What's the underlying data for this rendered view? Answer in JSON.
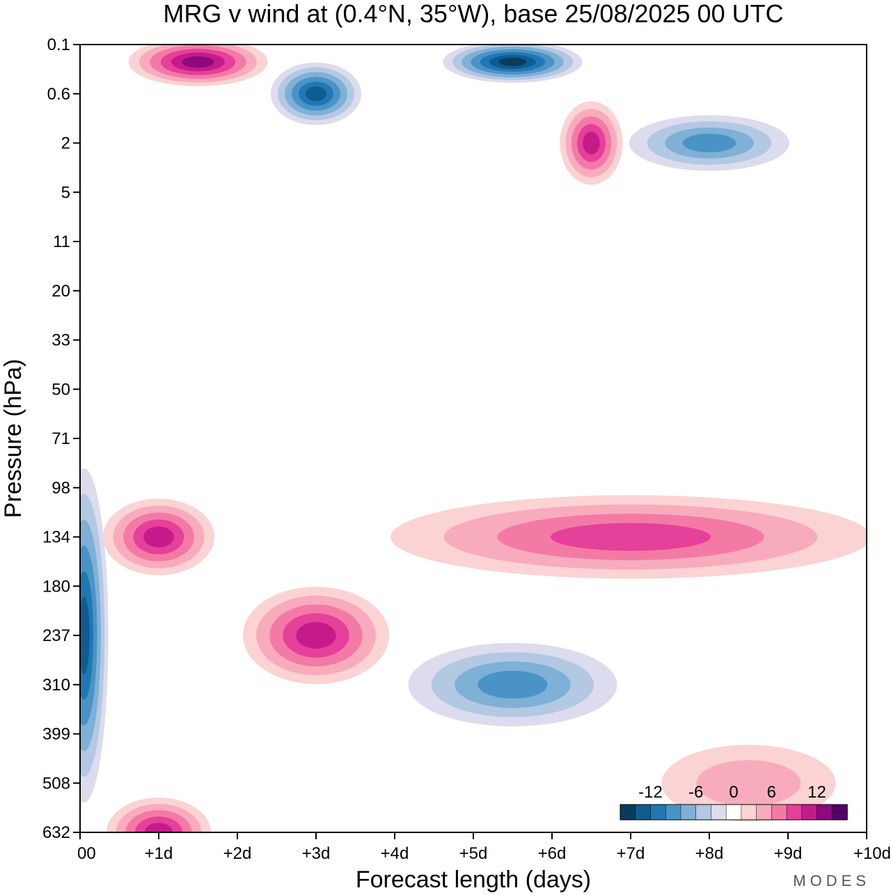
{
  "chart_data": {
    "type": "contour",
    "title": "MRG v wind at (0.4°N, 35°W),  base 25/08/2025  00 UTC",
    "xlabel": "Forecast length (days)",
    "ylabel": "Pressure (hPa)",
    "x_ticks": [
      "00",
      "+1d",
      "+2d",
      "+3d",
      "+4d",
      "+5d",
      "+6d",
      "+7d",
      "+8d",
      "+9d",
      "+10d"
    ],
    "y_ticks": [
      "0.1",
      "0.6",
      "2",
      "5",
      "11",
      "20",
      "33",
      "50",
      "71",
      "98",
      "134",
      "180",
      "237",
      "310",
      "399",
      "508",
      "632"
    ],
    "xlim": [
      0,
      10
    ],
    "colorbar": {
      "tick_labels": [
        "-12",
        "-6",
        "0",
        "6",
        "12"
      ],
      "levels": [
        -14,
        -12,
        -10,
        -8,
        -6,
        -4,
        -2,
        2,
        4,
        6,
        8,
        10,
        12,
        14
      ],
      "colors": [
        "#0b3b5c",
        "#0d5d8f",
        "#1f78b4",
        "#4a93c6",
        "#7fb0d6",
        "#b3c8e3",
        "#dcdcee",
        "#ffffff",
        "#fbd3d3",
        "#f8abbd",
        "#f47aa6",
        "#e5409a",
        "#c51b8a",
        "#8b0a7d",
        "#54006b"
      ]
    },
    "features": [
      {
        "name": "neg-surface-core",
        "day": 0.05,
        "level": "237",
        "value": -13
      },
      {
        "name": "pos-day1-134",
        "day": 1.0,
        "level": "134",
        "value": 10
      },
      {
        "name": "pos-day3-237",
        "day": 3.0,
        "level": "237",
        "value": 10
      },
      {
        "name": "pos-band-134",
        "day": 7.0,
        "level": "134",
        "value": 9
      },
      {
        "name": "neg-day5-330",
        "day": 5.5,
        "level": "310",
        "value": -9
      },
      {
        "name": "pos-day1-600",
        "day": 1.0,
        "level": "632",
        "value": 10
      },
      {
        "name": "pos-day8-450",
        "day": 8.5,
        "level": "508",
        "value": 4
      },
      {
        "name": "neg-top-day5.5",
        "day": 5.5,
        "level": "0.1",
        "value": -14
      },
      {
        "name": "neg-top-day3",
        "day": 3.0,
        "level": "0.6",
        "value": -13
      },
      {
        "name": "pos-top-day1.5",
        "day": 1.5,
        "level": "0.1",
        "value": 12
      },
      {
        "name": "pos-top-day6.5",
        "day": 6.5,
        "level": "2",
        "value": 11
      },
      {
        "name": "neg-top-day8",
        "day": 8.0,
        "level": "2",
        "value": -9
      }
    ]
  },
  "brand": "MODES"
}
